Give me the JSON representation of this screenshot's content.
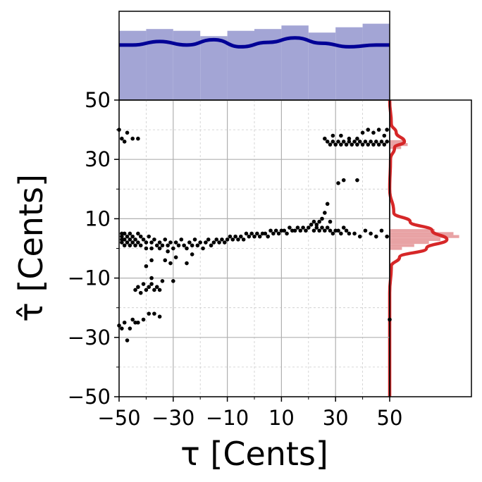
{
  "chart_data": [
    {
      "type": "scatter",
      "panel": "main",
      "xlabel": "τ [Cents]",
      "ylabel": "τ̂ [Cents]",
      "xlim": [
        -50,
        50
      ],
      "ylim": [
        -50,
        50
      ],
      "xticks": [
        -50,
        -30,
        -10,
        10,
        30,
        50
      ],
      "yticks": [
        -50,
        -30,
        -10,
        10,
        30,
        50
      ],
      "xtick_labels": [
        "−50",
        "−30",
        "−10",
        "10",
        "30",
        "50"
      ],
      "ytick_labels": [
        "−50",
        "−30",
        "−10",
        "10",
        "30",
        "50"
      ],
      "grid": {
        "major": true,
        "minor": true,
        "minor_style": "dashed"
      },
      "marker_color": "#000000",
      "series": [
        {
          "points": [
            [
              -50,
              40
            ],
            [
              -49,
              37
            ],
            [
              -48,
              36
            ],
            [
              -47,
              39
            ],
            [
              -45,
              37
            ],
            [
              -43,
              37
            ],
            [
              -49,
              5
            ],
            [
              -49,
              4
            ],
            [
              -49,
              3
            ],
            [
              -49,
              2
            ],
            [
              -48,
              5
            ],
            [
              -48,
              3
            ],
            [
              -48,
              1
            ],
            [
              -47,
              4
            ],
            [
              -47,
              2
            ],
            [
              -46,
              5
            ],
            [
              -46,
              3
            ],
            [
              -46,
              1
            ],
            [
              -45,
              4
            ],
            [
              -45,
              2
            ],
            [
              -44,
              3
            ],
            [
              -44,
              1
            ],
            [
              -43,
              5
            ],
            [
              -43,
              2
            ],
            [
              -42,
              4
            ],
            [
              -42,
              1
            ],
            [
              -41,
              3
            ],
            [
              -40,
              2
            ],
            [
              -40,
              0
            ],
            [
              -39,
              4
            ],
            [
              -38,
              2
            ],
            [
              -38,
              0
            ],
            [
              -37,
              3
            ],
            [
              -36,
              1
            ],
            [
              -35,
              2
            ],
            [
              -35,
              0
            ],
            [
              -34,
              1
            ],
            [
              -33,
              3
            ],
            [
              -32,
              1
            ],
            [
              -32,
              -1
            ],
            [
              -31,
              2
            ],
            [
              -30,
              0
            ],
            [
              -29,
              2
            ],
            [
              -28,
              1
            ],
            [
              -27,
              3
            ],
            [
              -26,
              1
            ],
            [
              -25,
              0
            ],
            [
              -24,
              2
            ],
            [
              -23,
              1
            ],
            [
              -22,
              3
            ],
            [
              -21,
              1
            ],
            [
              -20,
              2
            ],
            [
              -19,
              0
            ],
            [
              -18,
              2
            ],
            [
              -17,
              3
            ],
            [
              -16,
              1
            ],
            [
              -15,
              2
            ],
            [
              -14,
              3
            ],
            [
              -13,
              2
            ],
            [
              -12,
              3
            ],
            [
              -11,
              2
            ],
            [
              -10,
              3
            ],
            [
              -9,
              4
            ],
            [
              -8,
              3
            ],
            [
              -7,
              4
            ],
            [
              -6,
              3
            ],
            [
              -5,
              4
            ],
            [
              -4,
              3
            ],
            [
              -3,
              5
            ],
            [
              -2,
              4
            ],
            [
              -1,
              5
            ],
            [
              0,
              4
            ],
            [
              1,
              5
            ],
            [
              2,
              4
            ],
            [
              3,
              5
            ],
            [
              4,
              5
            ],
            [
              5,
              4
            ],
            [
              6,
              6
            ],
            [
              7,
              5
            ],
            [
              8,
              6
            ],
            [
              9,
              5
            ],
            [
              10,
              6
            ],
            [
              11,
              6
            ],
            [
              12,
              5
            ],
            [
              13,
              7
            ],
            [
              14,
              6
            ],
            [
              15,
              6
            ],
            [
              16,
              7
            ],
            [
              17,
              6
            ],
            [
              18,
              7
            ],
            [
              19,
              6
            ],
            [
              20,
              7
            ],
            [
              21,
              8
            ],
            [
              22,
              6
            ],
            [
              23,
              7
            ],
            [
              24,
              6
            ],
            [
              25,
              7
            ],
            [
              26,
              6
            ],
            [
              27,
              7
            ],
            [
              28,
              6
            ],
            [
              29,
              5
            ],
            [
              30,
              6
            ],
            [
              31,
              6
            ],
            [
              32,
              5
            ],
            [
              33,
              7
            ],
            [
              34,
              6
            ],
            [
              35,
              5
            ],
            [
              23,
              8
            ],
            [
              24,
              9
            ],
            [
              25,
              10
            ],
            [
              26,
              12
            ],
            [
              27,
              15
            ],
            [
              28,
              9
            ],
            [
              22,
              9
            ],
            [
              31,
              22
            ],
            [
              33,
              23
            ],
            [
              38,
              23
            ],
            [
              37,
              5
            ],
            [
              39,
              4
            ],
            [
              41,
              6
            ],
            [
              43,
              5
            ],
            [
              45,
              4
            ],
            [
              47,
              6
            ],
            [
              49,
              4
            ],
            [
              -44,
              -14
            ],
            [
              -43,
              -13
            ],
            [
              -42,
              -15
            ],
            [
              -41,
              -12
            ],
            [
              -40,
              -14
            ],
            [
              -39,
              -13
            ],
            [
              -38,
              -12
            ],
            [
              -37,
              -14
            ],
            [
              -36,
              -13
            ],
            [
              -35,
              -14
            ],
            [
              -40,
              -6
            ],
            [
              -38,
              -4
            ],
            [
              -33,
              -4
            ],
            [
              -31,
              -5
            ],
            [
              -29,
              -3
            ],
            [
              -25,
              -5
            ],
            [
              -23,
              -2
            ],
            [
              -30,
              -11
            ],
            [
              -34,
              -11
            ],
            [
              -38,
              -10
            ],
            [
              -50,
              -26
            ],
            [
              -49,
              -27
            ],
            [
              -48,
              -25
            ],
            [
              -47,
              -31
            ],
            [
              -46,
              -27
            ],
            [
              -45,
              -24
            ],
            [
              -44,
              -25
            ],
            [
              -43,
              -25
            ],
            [
              -41,
              -24
            ],
            [
              -39,
              -22
            ],
            [
              -37,
              -22
            ],
            [
              -35,
              -23
            ],
            [
              26,
              37
            ],
            [
              27,
              36
            ],
            [
              28,
              35
            ],
            [
              29,
              36
            ],
            [
              30,
              35
            ],
            [
              31,
              36
            ],
            [
              32,
              35
            ],
            [
              33,
              36
            ],
            [
              34,
              35
            ],
            [
              35,
              36
            ],
            [
              36,
              35
            ],
            [
              37,
              36
            ],
            [
              38,
              35
            ],
            [
              39,
              36
            ],
            [
              40,
              35
            ],
            [
              41,
              36
            ],
            [
              42,
              35
            ],
            [
              43,
              36
            ],
            [
              44,
              35
            ],
            [
              45,
              36
            ],
            [
              46,
              35
            ],
            [
              47,
              36
            ],
            [
              48,
              35
            ],
            [
              49,
              36
            ],
            [
              29,
              38
            ],
            [
              32,
              38
            ],
            [
              35,
              37
            ],
            [
              38,
              37
            ],
            [
              40,
              39
            ],
            [
              42,
              40
            ],
            [
              44,
              39
            ],
            [
              46,
              40
            ],
            [
              48,
              38
            ],
            [
              49,
              40
            ],
            [
              50,
              -24
            ]
          ]
        }
      ]
    },
    {
      "type": "bar",
      "panel": "top-marginal",
      "xlim": [
        -50,
        50
      ],
      "bar_color": "#a3a5d5",
      "kde_color": "#000096",
      "x": [
        -45,
        -35,
        -25,
        -15,
        -5,
        5,
        15,
        25,
        35,
        45
      ],
      "values": [
        0.78,
        0.8,
        0.78,
        0.72,
        0.78,
        0.8,
        0.84,
        0.76,
        0.82,
        0.86
      ],
      "kde": [
        0.62,
        0.66,
        0.62,
        0.68,
        0.6,
        0.65,
        0.7,
        0.64,
        0.6,
        0.62
      ]
    },
    {
      "type": "bar",
      "panel": "right-marginal",
      "orientation": "horizontal",
      "ylim": [
        -50,
        50
      ],
      "bar_color": "#e8a2a4",
      "kde_color": "#d62728",
      "x": [
        36,
        35,
        34,
        6,
        5,
        4,
        3,
        2,
        1,
        0
      ],
      "values": [
        0.16,
        0.22,
        0.14,
        0.55,
        0.78,
        0.85,
        0.62,
        0.48,
        0.3,
        0.15
      ],
      "kde_points": [
        [
          50,
          0.0
        ],
        [
          42,
          0.02
        ],
        [
          39,
          0.08
        ],
        [
          36,
          0.18
        ],
        [
          34,
          0.06
        ],
        [
          30,
          0.01
        ],
        [
          20,
          0.0
        ],
        [
          12,
          0.05
        ],
        [
          9,
          0.25
        ],
        [
          6,
          0.52
        ],
        [
          3,
          0.7
        ],
        [
          0,
          0.45
        ],
        [
          -3,
          0.12
        ],
        [
          -6,
          0.02
        ],
        [
          -15,
          0.0
        ],
        [
          -50,
          0.0
        ]
      ]
    }
  ]
}
